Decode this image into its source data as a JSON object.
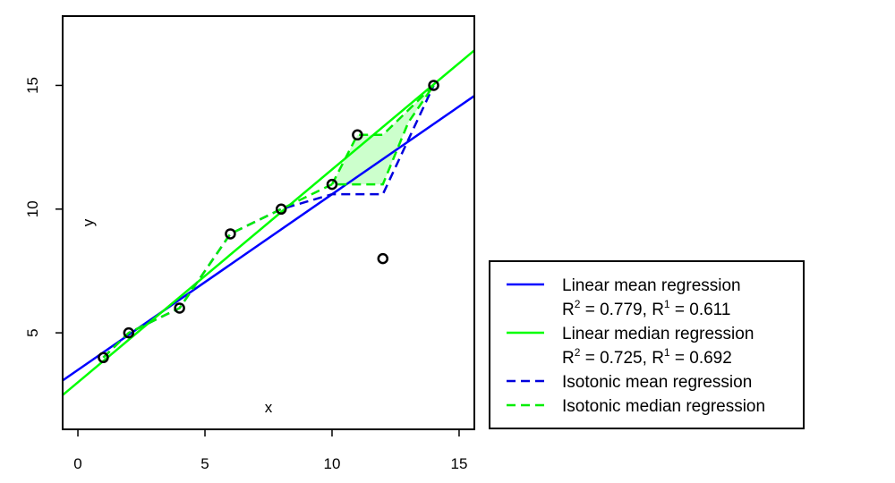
{
  "chart_data": {
    "type": "line",
    "xlabel": "x",
    "ylabel": "y",
    "xlim": [
      -0.6,
      15.6
    ],
    "ylim": [
      1.1,
      17.8
    ],
    "x_ticks": [
      0,
      5,
      10,
      15
    ],
    "y_ticks": [
      5,
      10,
      15
    ],
    "grid": false,
    "legend_position": "bottom-right, outside plot",
    "points": {
      "x": [
        1,
        2,
        4,
        6,
        8,
        10,
        11,
        12,
        14
      ],
      "y": [
        4,
        5,
        6,
        9,
        10,
        11,
        13,
        8,
        15
      ]
    },
    "lines": [
      {
        "id": "linear_mean",
        "style": "solid",
        "color": "#0000ff",
        "intercept": 3.5,
        "slope": 0.71
      },
      {
        "id": "linear_median",
        "style": "solid",
        "color": "#00ff00",
        "intercept": 3.0,
        "slope": 0.86
      }
    ],
    "step_lines": [
      {
        "id": "isotonic_mean",
        "style": "dashed",
        "color": "#0000dd",
        "x": [
          1,
          2,
          4,
          6,
          8,
          10,
          11,
          12,
          14
        ],
        "y": [
          4,
          5,
          6,
          9,
          10,
          10.6,
          10.6,
          10.6,
          15
        ]
      },
      {
        "id": "isotonic_median_lower",
        "style": "dashed",
        "color": "#00ee00",
        "x": [
          1,
          2,
          4,
          6,
          8,
          10,
          11,
          12,
          13,
          14
        ],
        "y": [
          4,
          5,
          6,
          9,
          10,
          11,
          11,
          11,
          13.5,
          15
        ]
      },
      {
        "id": "isotonic_median_upper",
        "style": "dashed",
        "color": "#00ee00",
        "x": [
          10,
          11,
          12,
          13,
          14
        ],
        "y": [
          11,
          13,
          13,
          14,
          15
        ]
      }
    ],
    "band": {
      "color": "#ccffcc",
      "upper": {
        "x": [
          10,
          11,
          12,
          13,
          14
        ],
        "y": [
          11,
          13,
          13,
          14,
          15
        ]
      },
      "lower": {
        "x": [
          10,
          11,
          12,
          13,
          14
        ],
        "y": [
          11,
          11,
          11,
          13.5,
          15
        ]
      }
    },
    "legend": [
      {
        "label": "Linear mean regression",
        "style": "solid",
        "color": "#0000ff",
        "stats": {
          "r2_name": "R",
          "r2_exp": "2",
          "r2_val": " = 0.779,  ",
          "r1_name": "R",
          "r1_exp": "1",
          "r1_val": " = 0.611"
        }
      },
      {
        "label": "Linear median regression",
        "style": "solid",
        "color": "#00ff00",
        "stats": {
          "r2_name": "R",
          "r2_exp": "2",
          "r2_val": " = 0.725,  ",
          "r1_name": "R",
          "r1_exp": "1",
          "r1_val": " = 0.692"
        }
      },
      {
        "label": "Isotonic mean regression",
        "style": "dashed",
        "color": "#0000dd"
      },
      {
        "label": "Isotonic median regression",
        "style": "dashed",
        "color": "#00ee00"
      }
    ]
  }
}
